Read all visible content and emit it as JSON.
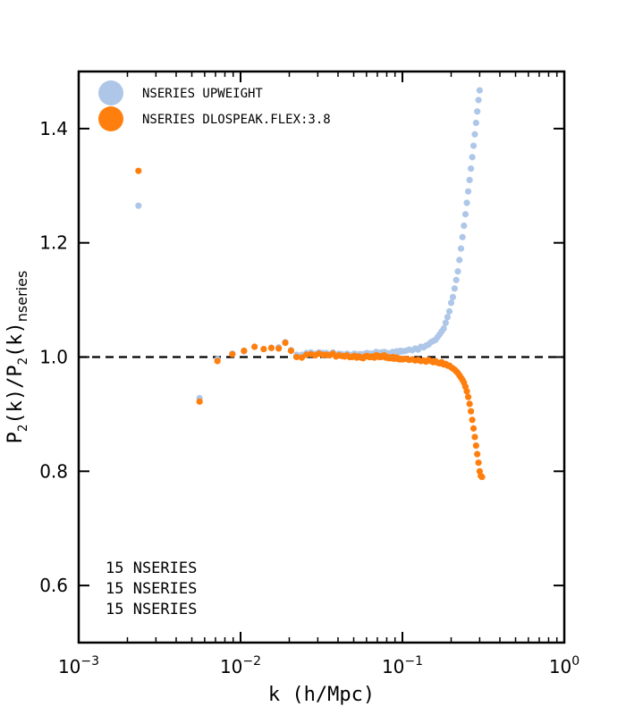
{
  "chart_data": {
    "type": "scatter",
    "xlabel": "k (h/Mpc)",
    "ylabel": {
      "base": "P",
      "sub": "2",
      "mid": "(k)/P",
      "sub2": "2",
      "end": "(k)",
      "sub3": "nseries"
    },
    "x_scale": "log",
    "xlim": [
      0.001,
      1.0
    ],
    "ylim": [
      0.5,
      1.5
    ],
    "x_ticks": [
      {
        "value": 0.001,
        "base": "10",
        "exp": "−3"
      },
      {
        "value": 0.01,
        "base": "10",
        "exp": "−2"
      },
      {
        "value": 0.1,
        "base": "10",
        "exp": "−1"
      },
      {
        "value": 1.0,
        "base": "10",
        "exp": "0"
      }
    ],
    "y_ticks": [
      {
        "value": 0.6,
        "label": "0.6"
      },
      {
        "value": 0.8,
        "label": "0.8"
      },
      {
        "value": 1.0,
        "label": "1.0"
      },
      {
        "value": 1.2,
        "label": "1.2"
      },
      {
        "value": 1.4,
        "label": "1.4"
      }
    ],
    "reference_line": {
      "y": 1.0,
      "style": "dashed"
    },
    "legend_position": "top-left",
    "series": [
      {
        "name": "NSERIES UPWEIGHT",
        "color": "#aec7e8",
        "x": [
          0.00234,
          0.00558,
          0.0072,
          0.0089,
          0.0105,
          0.0122,
          0.0139,
          0.0155,
          0.0172,
          0.0189,
          0.0205,
          0.0222,
          0.0239,
          0.0255,
          0.0272,
          0.0289,
          0.0305,
          0.0322,
          0.0339,
          0.0355,
          0.0372,
          0.0389,
          0.0405,
          0.0422,
          0.0439,
          0.0455,
          0.0472,
          0.0489,
          0.0505,
          0.0522,
          0.0539,
          0.0555,
          0.0572,
          0.0589,
          0.0605,
          0.0622,
          0.0639,
          0.0655,
          0.0672,
          0.0689,
          0.0705,
          0.0722,
          0.0739,
          0.0755,
          0.0772,
          0.0789,
          0.0805,
          0.0822,
          0.0839,
          0.0855,
          0.0872,
          0.0889,
          0.0905,
          0.0922,
          0.0939,
          0.0955,
          0.0972,
          0.0989,
          0.1005,
          0.105,
          0.11,
          0.115,
          0.12,
          0.125,
          0.13,
          0.135,
          0.14,
          0.145,
          0.15,
          0.155,
          0.16,
          0.165,
          0.17,
          0.175,
          0.18,
          0.185,
          0.19,
          0.195,
          0.2,
          0.205,
          0.21,
          0.215,
          0.22,
          0.225,
          0.23,
          0.235,
          0.24,
          0.245,
          0.25,
          0.255,
          0.26,
          0.265,
          0.27,
          0.275,
          0.28,
          0.285,
          0.29,
          0.295,
          0.3
        ],
        "y": [
          1.265,
          0.928,
          0.996,
          1.006,
          1.01,
          1.018,
          1.014,
          1.016,
          1.017,
          1.026,
          1.012,
          1.004,
          1.004,
          1.007,
          1.008,
          1.006,
          1.008,
          1.007,
          1.007,
          1.005,
          1.008,
          1.004,
          1.006,
          1.005,
          1.004,
          1.006,
          1.003,
          1.004,
          1.006,
          1.004,
          1.005,
          1.005,
          1.003,
          1.006,
          1.007,
          1.005,
          1.006,
          1.006,
          1.005,
          1.009,
          1.007,
          1.006,
          1.008,
          1.007,
          1.009,
          1.005,
          1.007,
          1.005,
          1.006,
          1.007,
          1.009,
          1.008,
          1.008,
          1.01,
          1.008,
          1.009,
          1.011,
          1.01,
          1.01,
          1.011,
          1.013,
          1.012,
          1.015,
          1.013,
          1.018,
          1.017,
          1.02,
          1.022,
          1.026,
          1.028,
          1.03,
          1.035,
          1.04,
          1.045,
          1.05,
          1.06,
          1.07,
          1.08,
          1.095,
          1.105,
          1.12,
          1.135,
          1.15,
          1.17,
          1.19,
          1.21,
          1.23,
          1.25,
          1.27,
          1.29,
          1.31,
          1.33,
          1.35,
          1.37,
          1.39,
          1.41,
          1.43,
          1.45,
          1.467
        ]
      },
      {
        "name": "NSERIES DLOSPEAK.FLEX:3.8",
        "color": "#ff7f0e",
        "x": [
          0.00234,
          0.00558,
          0.0072,
          0.0089,
          0.0105,
          0.0122,
          0.0139,
          0.0155,
          0.0172,
          0.0189,
          0.0205,
          0.0222,
          0.0239,
          0.0255,
          0.0272,
          0.0289,
          0.0305,
          0.0322,
          0.0339,
          0.0355,
          0.0372,
          0.0389,
          0.0405,
          0.0422,
          0.0439,
          0.0455,
          0.0472,
          0.0489,
          0.0505,
          0.0522,
          0.0539,
          0.0555,
          0.0572,
          0.0589,
          0.0605,
          0.0622,
          0.0639,
          0.0655,
          0.0672,
          0.0689,
          0.0705,
          0.0722,
          0.0739,
          0.0755,
          0.0772,
          0.0789,
          0.0805,
          0.0822,
          0.0839,
          0.0855,
          0.0872,
          0.0889,
          0.0905,
          0.0922,
          0.0939,
          0.0955,
          0.0972,
          0.0989,
          0.1005,
          0.105,
          0.11,
          0.115,
          0.12,
          0.125,
          0.13,
          0.135,
          0.14,
          0.145,
          0.15,
          0.155,
          0.16,
          0.165,
          0.17,
          0.175,
          0.18,
          0.185,
          0.19,
          0.195,
          0.2,
          0.205,
          0.21,
          0.215,
          0.22,
          0.225,
          0.23,
          0.235,
          0.24,
          0.245,
          0.25,
          0.255,
          0.26,
          0.265,
          0.27,
          0.275,
          0.28,
          0.285,
          0.29,
          0.295,
          0.3,
          0.305,
          0.31
        ],
        "y": [
          1.326,
          0.922,
          0.993,
          1.005,
          1.011,
          1.018,
          1.014,
          1.016,
          1.015,
          1.025,
          1.011,
          1.0,
          0.999,
          1.004,
          1.005,
          1.003,
          1.006,
          1.004,
          1.004,
          1.003,
          1.006,
          1.001,
          1.003,
          1.002,
          1.001,
          1.003,
          1.0,
          1.0,
          1.002,
          0.999,
          1.001,
          0.999,
          0.998,
          1.001,
          1.002,
          1.0,
          1.0,
          1.001,
          0.999,
          1.003,
          1.002,
          1.0,
          1.0,
          1.002,
          1.003,
          0.999,
          1.0,
          0.998,
          0.999,
          0.998,
          1.0,
          0.997,
          0.998,
          0.999,
          0.997,
          0.996,
          0.997,
          0.996,
          0.996,
          0.997,
          0.995,
          0.996,
          0.994,
          0.995,
          0.993,
          0.994,
          0.992,
          0.995,
          0.993,
          0.991,
          0.993,
          0.99,
          0.989,
          0.991,
          0.987,
          0.988,
          0.985,
          0.985,
          0.982,
          0.98,
          0.978,
          0.975,
          0.972,
          0.968,
          0.964,
          0.96,
          0.955,
          0.948,
          0.94,
          0.93,
          0.918,
          0.905,
          0.89,
          0.875,
          0.86,
          0.845,
          0.83,
          0.815,
          0.8,
          0.792,
          0.79
        ]
      }
    ],
    "annotations": [
      "15 NSERIES",
      "15 NSERIES",
      "15 NSERIES"
    ]
  }
}
